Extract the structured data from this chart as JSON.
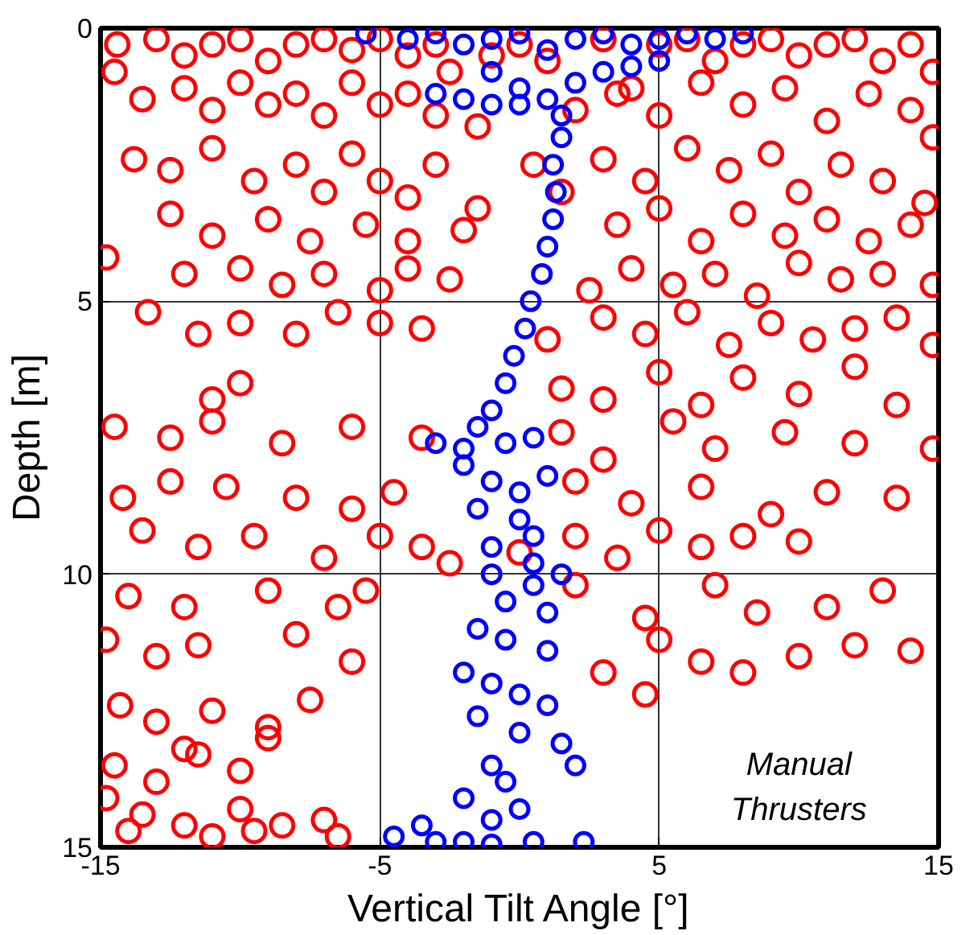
{
  "chart_data": {
    "type": "scatter",
    "xlabel": "Vertical Tilt Angle [°]",
    "ylabel": "Depth [m]",
    "xlim": [
      -15,
      15
    ],
    "ylim": [
      15,
      0
    ],
    "xticks": [
      -15,
      -5,
      5,
      15
    ],
    "yticks": [
      0,
      5,
      10,
      15
    ],
    "grid": true,
    "marker": "circle",
    "annotations": [
      "Manual\nThrusters"
    ],
    "series": [
      {
        "color": "#ff0000",
        "x": [
          -14.4,
          -13,
          -12,
          -11,
          -10,
          -9,
          -8,
          -7,
          -6,
          -5,
          -4,
          -3,
          -2.5,
          -1,
          0,
          1,
          3,
          4,
          5,
          6,
          7,
          8,
          9,
          10,
          11,
          12,
          13,
          14,
          14.8,
          -14.5,
          -13.5,
          -12,
          -11,
          -10,
          -9,
          -8,
          -7,
          -6,
          -5,
          -4,
          -3,
          -1.5,
          0.5,
          2,
          3.5,
          5,
          6.5,
          8,
          9.5,
          11,
          12.5,
          14,
          14.8,
          -13.8,
          -12.5,
          -11,
          -9.5,
          -8,
          -7,
          -6,
          -5,
          -4,
          -3,
          -1.5,
          1.5,
          3,
          4.5,
          6,
          7.5,
          9,
          10,
          11.5,
          13,
          14.5,
          -12.5,
          -11,
          -9,
          -7.5,
          -5.5,
          -4,
          -2,
          3.5,
          5,
          6.5,
          8,
          9.5,
          11,
          12.5,
          14,
          -14.8,
          -12,
          -10,
          -8.5,
          -7,
          -5,
          -4,
          -2.5,
          2.5,
          4,
          5.5,
          7,
          8.5,
          10,
          11.5,
          13,
          14.8,
          -13.3,
          -11.5,
          -10,
          -8,
          -6.5,
          -5,
          -3.5,
          1,
          3,
          4.5,
          6,
          7.5,
          9,
          10.5,
          12,
          13.5,
          14.8,
          -10,
          -11,
          1.5,
          3,
          5,
          6.5,
          8,
          10,
          12,
          13.5,
          -14.5,
          -12.5,
          -11,
          -8.5,
          -6,
          -3.5,
          1.5,
          3,
          5.5,
          7,
          9.5,
          12,
          14.8,
          -14.2,
          -12.5,
          -10.5,
          -8,
          -6,
          -4.5,
          2,
          4,
          6.5,
          9,
          11,
          13.5,
          -13.5,
          -11.5,
          -9.5,
          -7,
          -5,
          -3.5,
          -2.5,
          0,
          2,
          3.5,
          5,
          6.5,
          8,
          10,
          -14,
          -12,
          -9,
          -6.5,
          -5.5,
          2,
          4.5,
          7,
          8.5,
          11,
          13,
          -14.8,
          -13,
          -11.5,
          -8,
          -6,
          3,
          5,
          6.5,
          8,
          10,
          12,
          14,
          4.5,
          -14.3,
          -13,
          -11,
          -9,
          -7.5,
          -12,
          -14.5,
          -13,
          -11.5,
          -10,
          -9,
          -14.8,
          -13.5,
          -12,
          -10,
          -8.5,
          -14,
          -11,
          -9.5,
          -7,
          -6.5
        ],
        "values": [
          0.3,
          0.2,
          0.5,
          0.3,
          0.2,
          0.6,
          0.3,
          0.2,
          0.4,
          0.2,
          0.5,
          0.3,
          0.8,
          0.5,
          0.3,
          0.6,
          0.2,
          1.1,
          0.3,
          0.2,
          0.6,
          0.3,
          0.2,
          0.5,
          0.3,
          0.2,
          0.6,
          0.3,
          0.8,
          0.8,
          1.3,
          1.1,
          1.5,
          1.0,
          1.4,
          1.2,
          1.6,
          1.0,
          1.4,
          1.2,
          1.6,
          1.8,
          2.5,
          1.5,
          1.2,
          1.6,
          1.0,
          1.4,
          1.1,
          1.7,
          1.2,
          1.5,
          2.0,
          2.4,
          2.6,
          2.2,
          2.8,
          2.5,
          3.0,
          2.3,
          2.8,
          3.1,
          2.5,
          3.3,
          3.0,
          2.4,
          2.8,
          2.2,
          2.6,
          2.3,
          3.0,
          2.5,
          2.8,
          3.2,
          3.4,
          3.8,
          3.5,
          3.9,
          3.6,
          3.9,
          3.7,
          3.6,
          3.3,
          3.9,
          3.4,
          3.8,
          3.5,
          3.9,
          3.6,
          4.2,
          4.5,
          4.4,
          4.7,
          4.5,
          4.8,
          4.4,
          4.6,
          4.8,
          4.4,
          4.7,
          4.5,
          4.9,
          4.3,
          4.6,
          4.5,
          4.7,
          5.2,
          5.6,
          5.4,
          5.6,
          5.2,
          5.4,
          5.5,
          5.7,
          5.3,
          5.6,
          5.2,
          5.8,
          5.4,
          5.7,
          5.5,
          5.3,
          5.8,
          6.5,
          6.8,
          6.6,
          6.8,
          6.3,
          6.9,
          6.4,
          6.7,
          6.2,
          6.9,
          7.3,
          7.5,
          7.2,
          7.6,
          7.3,
          7.5,
          7.4,
          7.9,
          7.2,
          7.7,
          7.4,
          7.6,
          7.7,
          8.6,
          8.3,
          8.4,
          8.6,
          8.8,
          8.5,
          8.3,
          8.7,
          8.4,
          8.9,
          8.5,
          8.6,
          9.2,
          9.5,
          9.3,
          9.7,
          9.3,
          9.5,
          9.8,
          9.6,
          9.3,
          9.7,
          9.2,
          9.5,
          9.3,
          9.4,
          10.4,
          10.6,
          10.3,
          10.6,
          10.3,
          10.2,
          10.8,
          10.2,
          10.7,
          10.6,
          10.3,
          11.2,
          11.5,
          11.3,
          11.1,
          11.6,
          11.8,
          11.2,
          11.6,
          11.8,
          11.5,
          11.3,
          11.4,
          12.2,
          12.4,
          12.7,
          12.5,
          12.8,
          12.3,
          13.2,
          13.5,
          13.8,
          13.3,
          13.6,
          13.0,
          14.1,
          14.4,
          14.6,
          14.3,
          14.6,
          14.7,
          14.8,
          14.7,
          14.5,
          14.8
        ]
      },
      {
        "color": "#0000ff",
        "x": [
          -5.5,
          -4,
          -3,
          -2,
          -1,
          0,
          1,
          2,
          3,
          4,
          5,
          6,
          7,
          8,
          -1,
          0,
          -3,
          -2,
          -1,
          0,
          1,
          2,
          3,
          4,
          5,
          1.5,
          1.5,
          1.2,
          1.3,
          1.2,
          1.0,
          0.8,
          0.4,
          0.2,
          -0.2,
          -0.5,
          -1.0,
          -1.5,
          -3,
          -2,
          -0.5,
          0.5,
          -2,
          -1,
          0,
          1,
          -1.5,
          0,
          0.5,
          -1,
          0.5,
          -1,
          0.5,
          1.5,
          -0.5,
          1,
          -1.5,
          -0.5,
          1,
          -2,
          -1,
          0,
          1,
          -1.5,
          0,
          1.5,
          2,
          -1,
          -0.5,
          -2,
          0,
          -1,
          -3.5,
          -4.5,
          -3,
          -2,
          -1,
          2.3,
          0.5
        ],
        "values": [
          0.1,
          0.2,
          0.1,
          0.3,
          0.2,
          0.1,
          0.4,
          0.2,
          0.1,
          0.3,
          0.2,
          0.1,
          0.2,
          0.1,
          0.8,
          1.1,
          1.2,
          1.3,
          1.4,
          1.4,
          1.3,
          1.0,
          0.8,
          0.7,
          0.6,
          1.6,
          2.0,
          2.5,
          3.0,
          3.5,
          4.0,
          4.5,
          5.0,
          5.5,
          6.0,
          6.5,
          7.0,
          7.3,
          7.6,
          7.7,
          7.6,
          7.5,
          8.0,
          8.3,
          8.5,
          8.2,
          8.8,
          9.0,
          9.3,
          9.5,
          9.8,
          10.0,
          10.2,
          10.0,
          10.5,
          10.7,
          11.0,
          11.2,
          11.4,
          11.8,
          12.0,
          12.2,
          12.4,
          12.6,
          12.9,
          13.1,
          13.5,
          13.5,
          13.8,
          14.1,
          14.3,
          14.5,
          14.6,
          14.8,
          14.9,
          14.9,
          14.95,
          14.9,
          14.9
        ]
      }
    ]
  }
}
